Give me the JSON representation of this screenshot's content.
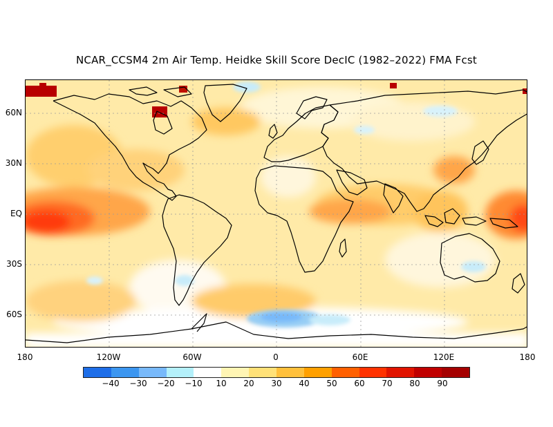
{
  "title": "NCAR_CCSM4 2m Air Temp. Heidke Skill Score DecIC (1982–2022) FMA Fcst",
  "y_axis_labels": [
    "60N",
    "30N",
    "EQ",
    "30S",
    "60S"
  ],
  "x_axis_labels": [
    "180",
    "120W",
    "60W",
    "0",
    "60E",
    "120E",
    "180"
  ],
  "colorbar": {
    "colors": [
      "#1e6ee8",
      "#3c96f0",
      "#78b9fa",
      "#b4f0fa",
      "#ffffff",
      "#fff5b4",
      "#ffe178",
      "#ffc03c",
      "#ffa000",
      "#ff6000",
      "#ff3200",
      "#e11400",
      "#c00000",
      "#a50000"
    ],
    "labels": [
      "−40",
      "−30",
      "−20",
      "−10",
      "10",
      "20",
      "30",
      "40",
      "50",
      "60",
      "70",
      "80",
      "90"
    ]
  },
  "map_field": {
    "description_colors": {
      "base": "#ffe9a6",
      "light": "#fff5c8",
      "mid": "#ffcf6e",
      "strong": "#ffa64a",
      "hot": "#ff6a20",
      "hotter": "#ff3a10",
      "extreme": "#b80000",
      "neg_light": "#c8ecfa",
      "neg_mid": "#96cdf5",
      "coast": "#000000",
      "grid": "#9a9a9a"
    }
  }
}
